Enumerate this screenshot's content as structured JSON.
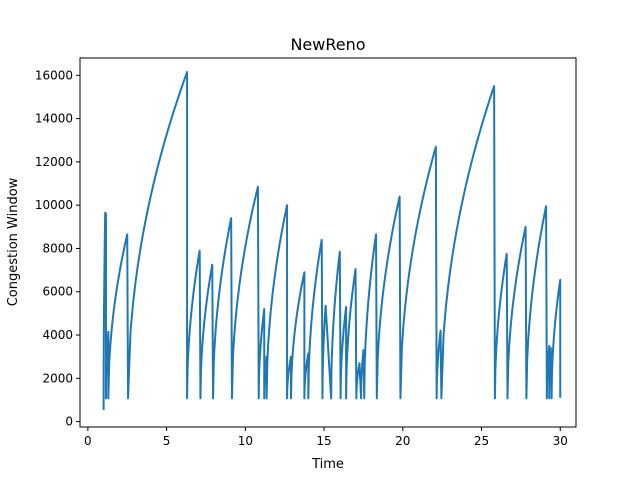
{
  "chart_data": {
    "type": "line",
    "title": "NewReno",
    "xlabel": "Time",
    "ylabel": "Congestion Window",
    "xlim": [
      -0.5,
      31.0
    ],
    "ylim": [
      -250,
      16800
    ],
    "xticks": [
      0,
      5,
      10,
      15,
      20,
      25,
      30
    ],
    "yticks": [
      0,
      2000,
      4000,
      6000,
      8000,
      10000,
      12000,
      14000,
      16000
    ],
    "grid": false,
    "legend": "none",
    "colors": {
      "series": "#1f77b4",
      "axes": "#000000",
      "background": "#ffffff"
    },
    "series": [
      {
        "segments": [
          {
            "t0": 1.0,
            "t1": 1.1,
            "y0": 536,
            "y1": 9650
          },
          {
            "t0": 1.1,
            "t1": 1.15,
            "y0": 9650,
            "y1": 9600
          },
          {
            "t0": 1.15,
            "t1": 1.3,
            "y0": 1072,
            "y1": 4150
          },
          {
            "t0": 1.3,
            "t1": 2.5,
            "y0": 1072,
            "y1": 8650
          },
          {
            "t0": 2.55,
            "t1": 6.3,
            "y0": 1072,
            "y1": 16150
          },
          {
            "t0": 6.3,
            "t1": 7.1,
            "y0": 1072,
            "y1": 7900
          },
          {
            "t0": 7.15,
            "t1": 7.9,
            "y0": 1072,
            "y1": 7250
          },
          {
            "t0": 7.95,
            "t1": 9.1,
            "y0": 1072,
            "y1": 9400
          },
          {
            "t0": 9.15,
            "t1": 10.8,
            "y0": 1072,
            "y1": 10850
          },
          {
            "t0": 10.85,
            "t1": 11.2,
            "y0": 1072,
            "y1": 5200
          },
          {
            "t0": 11.2,
            "t1": 11.35,
            "y0": 1072,
            "y1": 3000
          },
          {
            "t0": 11.35,
            "t1": 12.65,
            "y0": 1072,
            "y1": 10000
          },
          {
            "t0": 12.65,
            "t1": 12.9,
            "y0": 1072,
            "y1": 3000
          },
          {
            "t0": 12.9,
            "t1": 13.75,
            "y0": 1072,
            "y1": 6900
          },
          {
            "t0": 13.75,
            "t1": 14.0,
            "y0": 1072,
            "y1": 3150
          },
          {
            "t0": 14.0,
            "t1": 14.85,
            "y0": 1072,
            "y1": 8400
          },
          {
            "t0": 14.9,
            "t1": 15.1,
            "y0": 1072,
            "y1": 5350
          },
          {
            "t0": 15.45,
            "t1": 16.0,
            "y0": 1072,
            "y1": 7850
          },
          {
            "t0": 16.05,
            "t1": 16.4,
            "y0": 1072,
            "y1": 5300
          },
          {
            "t0": 16.4,
            "t1": 17.0,
            "y0": 1072,
            "y1": 7050
          },
          {
            "t0": 17.05,
            "t1": 17.25,
            "y0": 1072,
            "y1": 2700
          },
          {
            "t0": 17.35,
            "t1": 17.5,
            "y0": 1072,
            "y1": 3300
          },
          {
            "t0": 17.55,
            "t1": 18.3,
            "y0": 1072,
            "y1": 8650
          },
          {
            "t0": 18.35,
            "t1": 19.8,
            "y0": 1072,
            "y1": 10400
          },
          {
            "t0": 19.85,
            "t1": 22.1,
            "y0": 1072,
            "y1": 12700
          },
          {
            "t0": 22.15,
            "t1": 22.4,
            "y0": 1072,
            "y1": 4200
          },
          {
            "t0": 22.45,
            "t1": 25.8,
            "y0": 1072,
            "y1": 15500
          },
          {
            "t0": 25.85,
            "t1": 26.6,
            "y0": 1072,
            "y1": 7750
          },
          {
            "t0": 26.65,
            "t1": 27.8,
            "y0": 1072,
            "y1": 9000
          },
          {
            "t0": 27.85,
            "t1": 29.1,
            "y0": 1072,
            "y1": 9950
          },
          {
            "t0": 29.15,
            "t1": 29.3,
            "y0": 1072,
            "y1": 3500
          },
          {
            "t0": 29.3,
            "t1": 29.4,
            "y0": 1072,
            "y1": 3400
          },
          {
            "t0": 29.45,
            "t1": 30.0,
            "y0": 1072,
            "y1": 6550
          }
        ],
        "end_point": {
          "t": 30.0,
          "y": 1100
        }
      }
    ]
  }
}
